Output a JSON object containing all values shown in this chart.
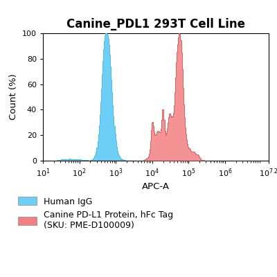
{
  "title": "Canine_PDL1 293T Cell Line",
  "xlabel": "APC-A",
  "ylabel": "Count (%)",
  "ylim": [
    0,
    100
  ],
  "yticks": [
    0,
    20,
    40,
    60,
    80,
    100
  ],
  "xtick_values": [
    10,
    100,
    1000,
    10000,
    100000,
    1000000,
    15848931.924
  ],
  "blue_color": "#6ECFF6",
  "blue_edge": "#4BBDE8",
  "red_color": "#F28080",
  "red_edge": "#D96060",
  "legend_blue_label": "Human IgG",
  "legend_red_label": "Canine PD-L1 Protein, hFc Tag\n(SKU: PME-D100009)",
  "background_color": "#ffffff",
  "title_fontsize": 12,
  "axis_fontsize": 9.5,
  "tick_fontsize": 8,
  "legend_fontsize": 9
}
